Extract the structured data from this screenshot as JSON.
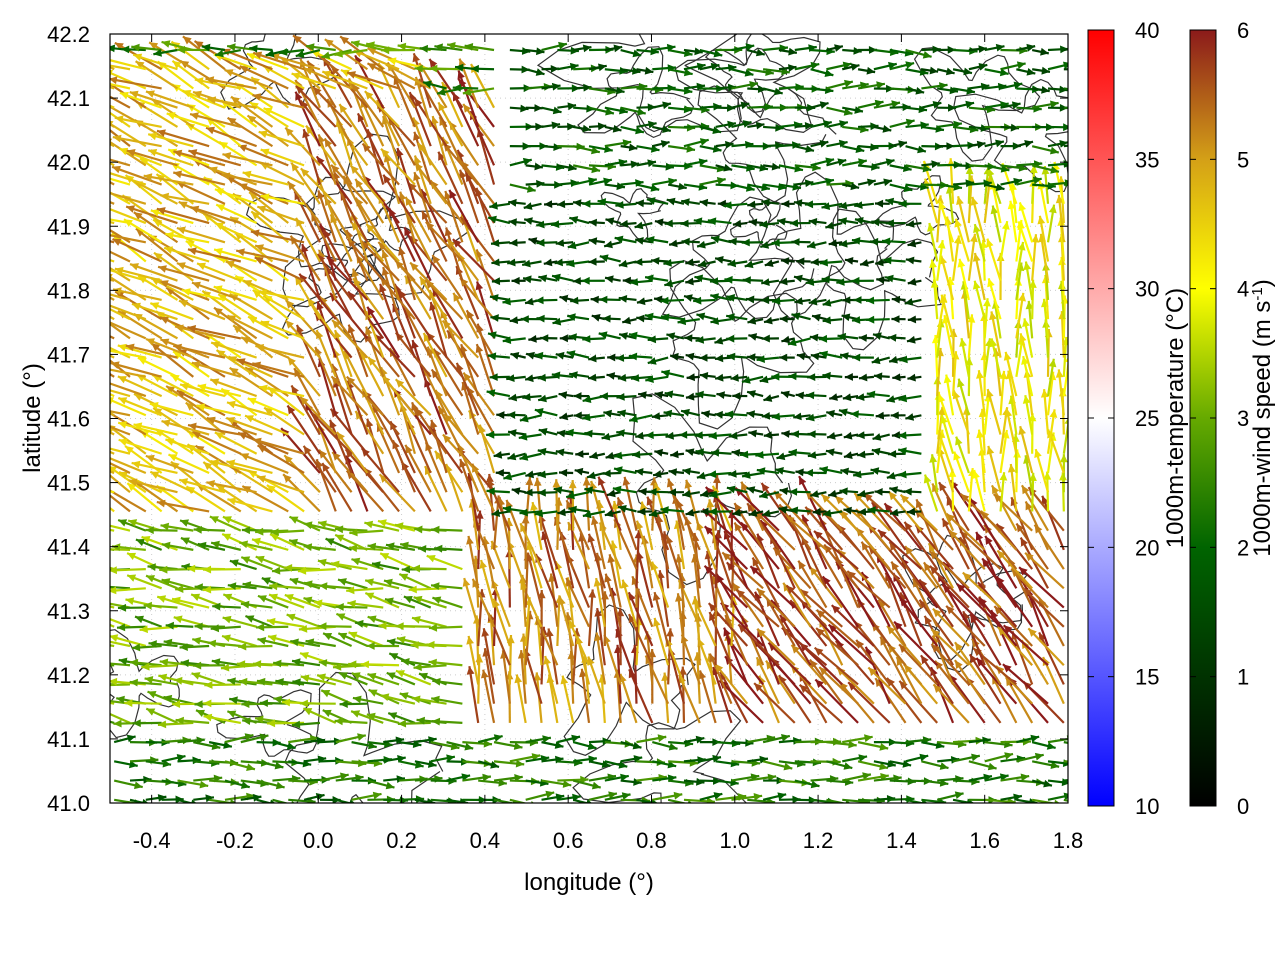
{
  "chart_data": {
    "type": "vector-field",
    "xlabel": "longitude (°)",
    "ylabel": "latitude (°)",
    "xlim": [
      -0.5,
      1.8
    ],
    "ylim": [
      41.0,
      42.2
    ],
    "xticks": [
      "-0.4",
      "-0.2",
      "0.0",
      "0.2",
      "0.4",
      "0.6",
      "0.8",
      "1.0",
      "1.2",
      "1.4",
      "1.6",
      "1.8"
    ],
    "yticks": [
      "41.0",
      "41.1",
      "41.2",
      "41.3",
      "41.4",
      "41.5",
      "41.6",
      "41.7",
      "41.8",
      "41.9",
      "42.0",
      "42.1",
      "42.2"
    ],
    "grid": true,
    "colorbars": [
      {
        "label": "1000m-temperature (°C)",
        "range": [
          10,
          40
        ],
        "ticks": [
          "10",
          "15",
          "20",
          "25",
          "30",
          "35",
          "40"
        ],
        "colors": [
          "#0000ff",
          "#ffffff",
          "#ff0000"
        ]
      },
      {
        "label_main": "1000m-wind speed (m s",
        "label_sup": "-1",
        "label_end": ")",
        "range": [
          0,
          6
        ],
        "ticks": [
          "0",
          "1",
          "2",
          "3",
          "4",
          "5",
          "6"
        ],
        "colors": [
          "#000000",
          "#006400",
          "#66aa00",
          "#ffff00",
          "#d4a017",
          "#8b1a1a"
        ]
      }
    ],
    "wind_regions": [
      {
        "lon": [
          -0.5,
          0.3
        ],
        "lat": [
          41.45,
          42.15
        ],
        "dir_deg": 155,
        "speed": 4.8
      },
      {
        "lon": [
          0.0,
          0.55
        ],
        "lat": [
          41.35,
          42.1
        ],
        "dir_deg": 120,
        "speed": 5.4
      },
      {
        "lon": [
          -0.5,
          0.4
        ],
        "lat": [
          41.0,
          41.45
        ],
        "dir_deg": 170,
        "speed": 3.0
      },
      {
        "lon": [
          0.35,
          1.0
        ],
        "lat": [
          41.0,
          41.45
        ],
        "dir_deg": 100,
        "speed": 5.3
      },
      {
        "lon": [
          1.0,
          1.8
        ],
        "lat": [
          41.1,
          41.45
        ],
        "dir_deg": 125,
        "speed": 5.6
      },
      {
        "lon": [
          0.45,
          1.45
        ],
        "lat": [
          41.45,
          41.95
        ],
        "dir_deg": 180,
        "speed": 1.4
      },
      {
        "lon": [
          0.45,
          1.8
        ],
        "lat": [
          41.95,
          42.2
        ],
        "dir_deg": 0,
        "speed": 1.8
      },
      {
        "lon": [
          1.45,
          1.8
        ],
        "lat": [
          41.45,
          41.95
        ],
        "dir_deg": 95,
        "speed": 4.1
      },
      {
        "lon": [
          -0.5,
          1.8
        ],
        "lat": [
          41.0,
          41.1
        ],
        "dir_deg": 0,
        "speed": 2.2
      }
    ]
  }
}
